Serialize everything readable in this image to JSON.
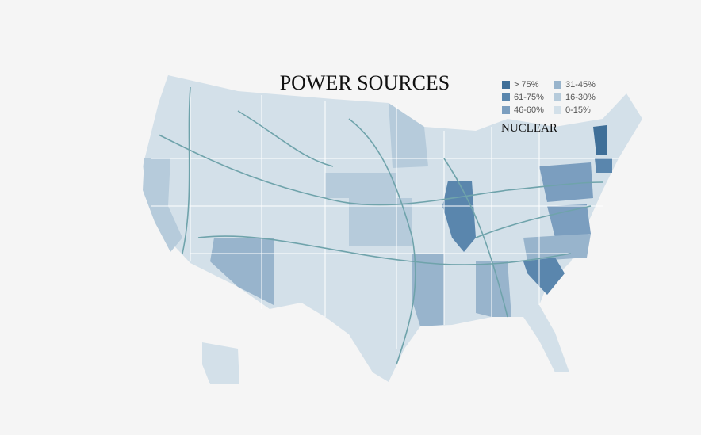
{
  "title": "POWER SOURCES",
  "subtitle": "NUCLEAR",
  "legend": [
    {
      "label": "> 75%",
      "color": "#3f6f98"
    },
    {
      "label": "61-75%",
      "color": "#5a86ad"
    },
    {
      "label": "46-60%",
      "color": "#7b9ebf"
    },
    {
      "label": "31-45%",
      "color": "#98b4cc"
    },
    {
      "label": "16-30%",
      "color": "#b6cbdb"
    },
    {
      "label": "0-15%",
      "color": "#d3e0e9"
    }
  ]
}
